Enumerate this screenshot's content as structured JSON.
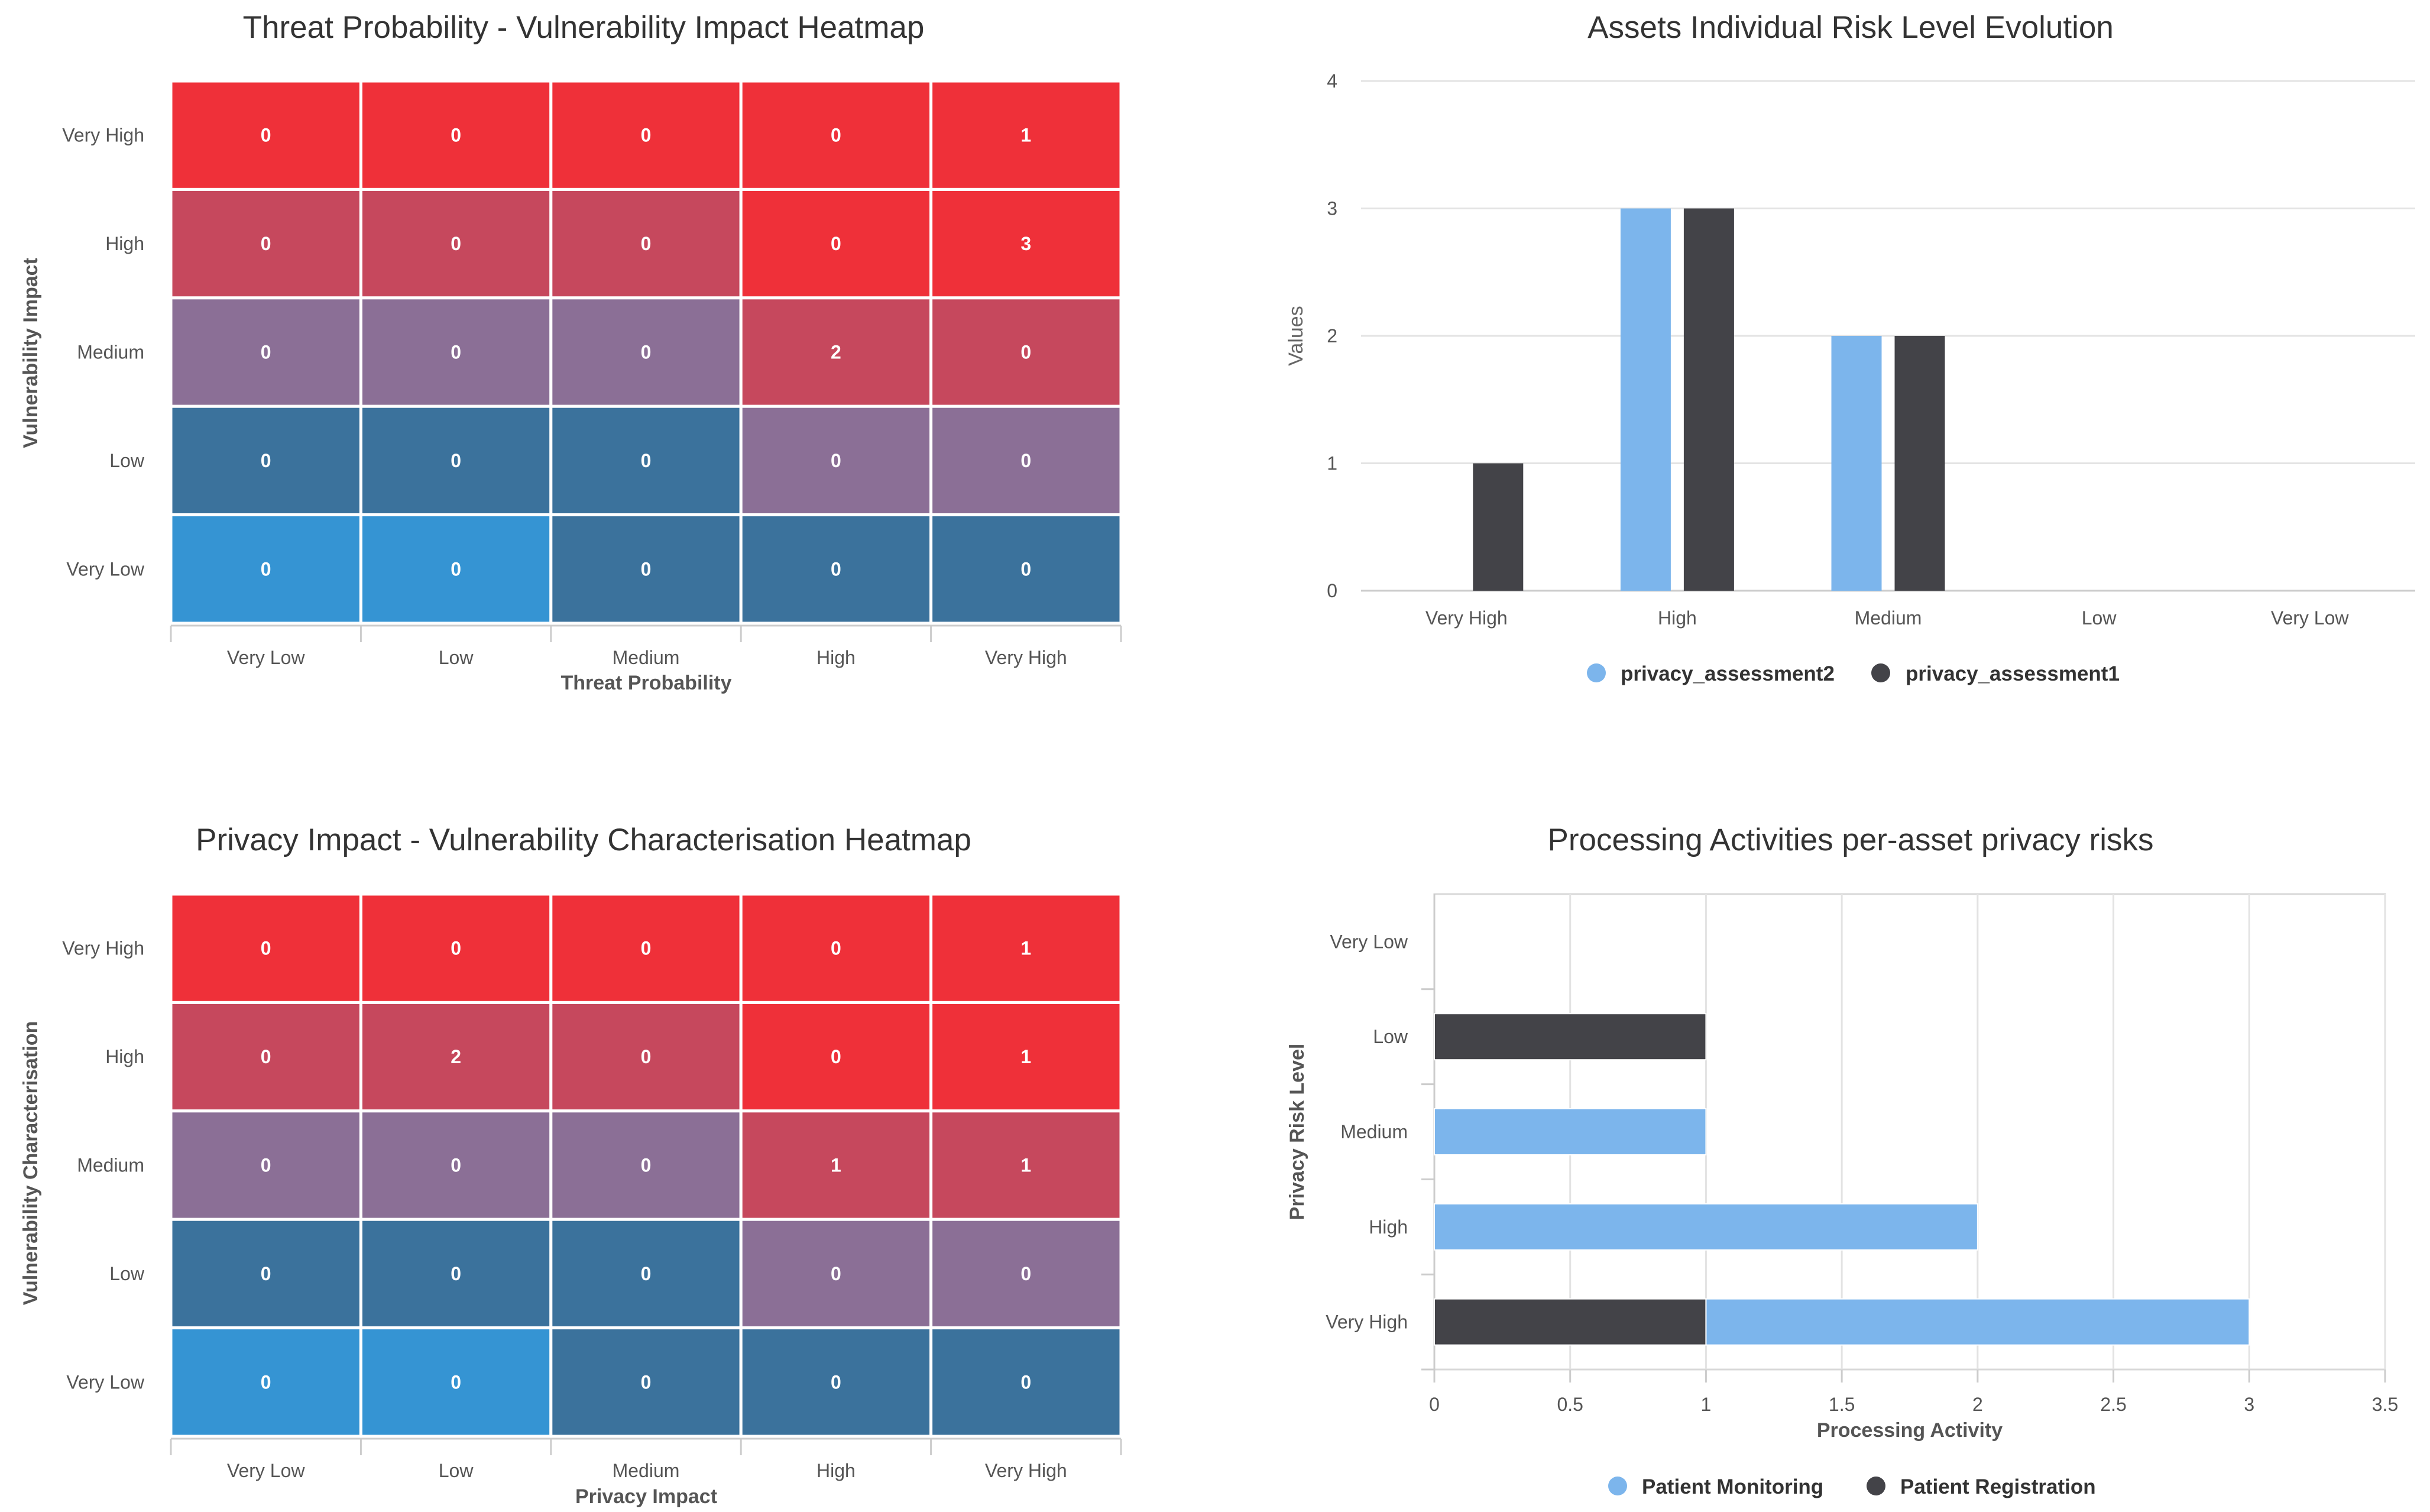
{
  "chart_data": [
    {
      "type": "heatmap",
      "title": "Threat Probability - Vulnerability Impact Heatmap",
      "xlabel": "Threat Probability",
      "ylabel": "Vulnerability Impact",
      "x_categories": [
        "Very Low",
        "Low",
        "Medium",
        "High",
        "Very High"
      ],
      "y_categories": [
        "Very High",
        "High",
        "Medium",
        "Low",
        "Very Low"
      ],
      "values": [
        [
          0,
          0,
          0,
          0,
          1
        ],
        [
          0,
          0,
          0,
          0,
          3
        ],
        [
          0,
          0,
          0,
          2,
          0
        ],
        [
          0,
          0,
          0,
          0,
          0
        ],
        [
          0,
          0,
          0,
          0,
          0
        ]
      ],
      "cell_colors": [
        [
          "#ef3039",
          "#ef3039",
          "#ef3039",
          "#ef3039",
          "#ef3039"
        ],
        [
          "#c6485d",
          "#c6485d",
          "#c6485d",
          "#ef3039",
          "#ef3039"
        ],
        [
          "#8b6f96",
          "#8b6f96",
          "#8b6f96",
          "#c6485d",
          "#c6485d"
        ],
        [
          "#3b729c",
          "#3b729c",
          "#3b729c",
          "#8b6f96",
          "#8b6f96"
        ],
        [
          "#3594d3",
          "#3594d3",
          "#3b729c",
          "#3b729c",
          "#3b729c"
        ]
      ]
    },
    {
      "type": "bar",
      "title": "Assets Individual Risk Level Evolution",
      "categories": [
        "Very High",
        "High",
        "Medium",
        "Low",
        "Very Low"
      ],
      "series": [
        {
          "name": "privacy_assessment2",
          "values": [
            0,
            3,
            2,
            0,
            0
          ],
          "color": "#7cb5ec"
        },
        {
          "name": "privacy_assessment1",
          "values": [
            1,
            3,
            2,
            0,
            0
          ],
          "color": "#434348"
        }
      ],
      "xlabel": "",
      "ylabel": "Values",
      "ylim": [
        0,
        4
      ],
      "yticks": [
        "0",
        "1",
        "2",
        "3",
        "4"
      ],
      "legend": "bottom-center"
    },
    {
      "type": "heatmap",
      "title": "Privacy Impact - Vulnerability Characterisation Heatmap",
      "xlabel": "Privacy Impact",
      "ylabel": "Vulnerability Characterisation",
      "x_categories": [
        "Very Low",
        "Low",
        "Medium",
        "High",
        "Very High"
      ],
      "y_categories": [
        "Very High",
        "High",
        "Medium",
        "Low",
        "Very Low"
      ],
      "values": [
        [
          0,
          0,
          0,
          0,
          1
        ],
        [
          0,
          2,
          0,
          0,
          1
        ],
        [
          0,
          0,
          0,
          1,
          1
        ],
        [
          0,
          0,
          0,
          0,
          0
        ],
        [
          0,
          0,
          0,
          0,
          0
        ]
      ],
      "cell_colors": [
        [
          "#ef3039",
          "#ef3039",
          "#ef3039",
          "#ef3039",
          "#ef3039"
        ],
        [
          "#c6485d",
          "#c6485d",
          "#c6485d",
          "#ef3039",
          "#ef3039"
        ],
        [
          "#8b6f96",
          "#8b6f96",
          "#8b6f96",
          "#c6485d",
          "#c6485d"
        ],
        [
          "#3b729c",
          "#3b729c",
          "#3b729c",
          "#8b6f96",
          "#8b6f96"
        ],
        [
          "#3594d3",
          "#3594d3",
          "#3b729c",
          "#3b729c",
          "#3b729c"
        ]
      ]
    },
    {
      "type": "bar",
      "orientation": "horizontal",
      "stacked": true,
      "title": "Processing Activities per-asset privacy risks",
      "categories": [
        "Very Low",
        "Low",
        "Medium",
        "High",
        "Very High"
      ],
      "series": [
        {
          "name": "Patient Monitoring",
          "values": [
            0,
            0,
            1,
            2,
            2
          ],
          "color": "#7cb5ec"
        },
        {
          "name": "Patient Registration",
          "values": [
            0,
            1,
            0,
            0,
            1
          ],
          "color": "#434348"
        }
      ],
      "xlabel": "Processing Activity",
      "ylabel": "Privacy Risk Level",
      "xlim": [
        0,
        3.5
      ],
      "xticks": [
        "0",
        "0.5",
        "1",
        "1.5",
        "2",
        "2.5",
        "3",
        "3.5"
      ],
      "legend": "bottom-center"
    }
  ]
}
